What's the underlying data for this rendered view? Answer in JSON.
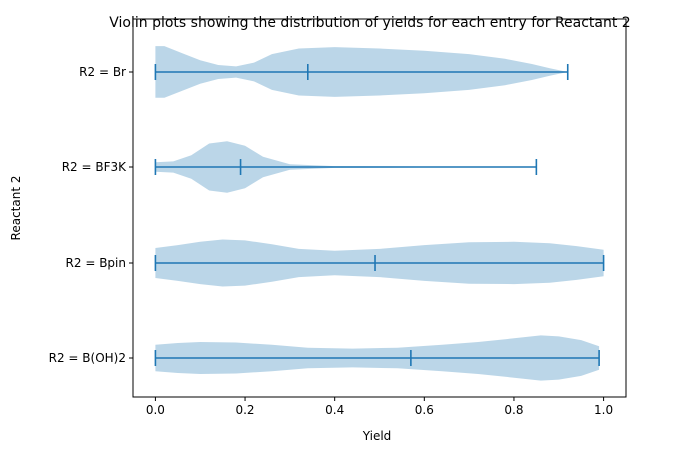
{
  "chart_data": {
    "type": "violin",
    "orientation": "horizontal",
    "title": "Violin plots showing the distribution of yields for each entry for Reactant 2",
    "xlabel": "Yield",
    "ylabel": "Reactant 2",
    "xlim": [
      -0.05,
      1.05
    ],
    "xticks": [
      "0.0",
      "0.2",
      "0.4",
      "0.6",
      "0.8",
      "1.0"
    ],
    "grid": false,
    "colors": {
      "body": "#1f77b4",
      "body_alpha": 0.3,
      "lines": "#1f77b4"
    },
    "violins": [
      {
        "name": "R2 = Br",
        "min": 0.0,
        "max": 0.92,
        "mean": 0.34,
        "density": [
          [
            0.0,
            0.55
          ],
          [
            0.02,
            0.55
          ],
          [
            0.06,
            0.4
          ],
          [
            0.1,
            0.25
          ],
          [
            0.14,
            0.15
          ],
          [
            0.18,
            0.12
          ],
          [
            0.22,
            0.2
          ],
          [
            0.26,
            0.38
          ],
          [
            0.32,
            0.5
          ],
          [
            0.4,
            0.53
          ],
          [
            0.5,
            0.5
          ],
          [
            0.6,
            0.45
          ],
          [
            0.7,
            0.38
          ],
          [
            0.78,
            0.28
          ],
          [
            0.84,
            0.17
          ],
          [
            0.88,
            0.08
          ],
          [
            0.92,
            0.0
          ]
        ]
      },
      {
        "name": "R2 = BF3K",
        "min": 0.0,
        "max": 0.85,
        "mean": 0.19,
        "density": [
          [
            0.0,
            0.1
          ],
          [
            0.04,
            0.12
          ],
          [
            0.08,
            0.25
          ],
          [
            0.12,
            0.5
          ],
          [
            0.16,
            0.55
          ],
          [
            0.2,
            0.45
          ],
          [
            0.24,
            0.22
          ],
          [
            0.3,
            0.06
          ],
          [
            0.4,
            0.02
          ],
          [
            0.5,
            0.015
          ],
          [
            0.6,
            0.01
          ],
          [
            0.7,
            0.01
          ],
          [
            0.8,
            0.008
          ],
          [
            0.85,
            0.0
          ]
        ]
      },
      {
        "name": "R2 = Bpin",
        "min": 0.0,
        "max": 1.0,
        "mean": 0.49,
        "density": [
          [
            0.0,
            0.32
          ],
          [
            0.05,
            0.38
          ],
          [
            0.1,
            0.45
          ],
          [
            0.15,
            0.5
          ],
          [
            0.2,
            0.48
          ],
          [
            0.26,
            0.4
          ],
          [
            0.32,
            0.3
          ],
          [
            0.4,
            0.26
          ],
          [
            0.5,
            0.3
          ],
          [
            0.6,
            0.38
          ],
          [
            0.7,
            0.44
          ],
          [
            0.8,
            0.45
          ],
          [
            0.88,
            0.42
          ],
          [
            0.94,
            0.36
          ],
          [
            1.0,
            0.28
          ]
        ]
      },
      {
        "name": "R2 = B(OH)2",
        "min": 0.0,
        "max": 0.99,
        "mean": 0.57,
        "density": [
          [
            0.0,
            0.28
          ],
          [
            0.05,
            0.32
          ],
          [
            0.1,
            0.34
          ],
          [
            0.18,
            0.33
          ],
          [
            0.26,
            0.28
          ],
          [
            0.34,
            0.22
          ],
          [
            0.44,
            0.2
          ],
          [
            0.54,
            0.22
          ],
          [
            0.64,
            0.28
          ],
          [
            0.72,
            0.34
          ],
          [
            0.8,
            0.42
          ],
          [
            0.86,
            0.48
          ],
          [
            0.9,
            0.46
          ],
          [
            0.95,
            0.38
          ],
          [
            0.99,
            0.25
          ]
        ]
      }
    ]
  }
}
